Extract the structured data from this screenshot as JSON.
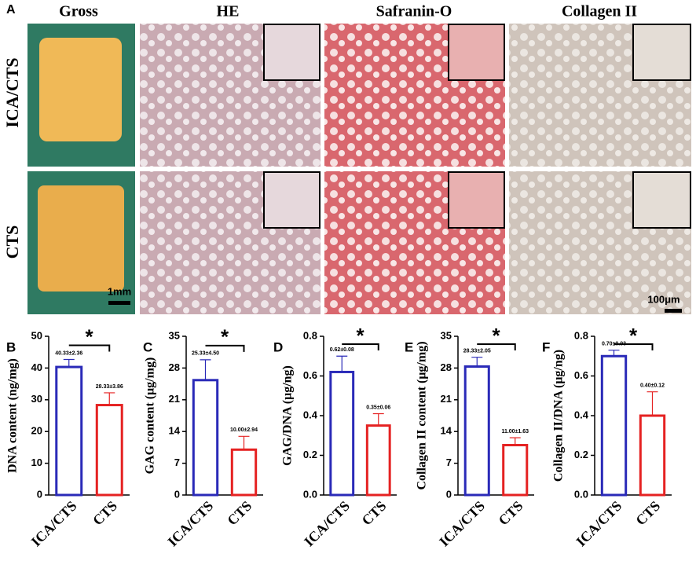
{
  "panel_a": {
    "label": "A",
    "columns": [
      "Gross",
      "HE",
      "Safranin-O",
      "Collagen II"
    ],
    "rows": [
      "ICA/CTS",
      "CTS"
    ],
    "scale_gross": "1mm",
    "scale_micro": "100μm"
  },
  "chart_data": [
    {
      "type": "bar",
      "label": "B",
      "ylabel": "DNA content (ng/mg)",
      "categories": [
        "ICA/CTS",
        "CTS"
      ],
      "values": [
        40.33,
        28.33
      ],
      "errors": [
        2.36,
        3.86
      ],
      "value_labels": [
        "40.33±2.36",
        "28.33±3.86"
      ],
      "colors": [
        "#2a2ab8",
        "#e52222"
      ],
      "ylim": [
        0,
        50
      ],
      "yticks": [
        0,
        10,
        20,
        30,
        40,
        50
      ],
      "significance": "*"
    },
    {
      "type": "bar",
      "label": "C",
      "ylabel": "GAG content (μg/mg)",
      "categories": [
        "ICA/CTS",
        "CTS"
      ],
      "values": [
        25.33,
        10.0
      ],
      "errors": [
        4.5,
        2.94
      ],
      "value_labels": [
        "25.33±4.50",
        "10.00±2.94"
      ],
      "colors": [
        "#2a2ab8",
        "#e52222"
      ],
      "ylim": [
        0,
        35
      ],
      "yticks": [
        0,
        7,
        14,
        21,
        28,
        35
      ],
      "significance": "*"
    },
    {
      "type": "bar",
      "label": "D",
      "ylabel": "GAG/DNA (μg/ng)",
      "categories": [
        "ICA/CTS",
        "CTS"
      ],
      "values": [
        0.62,
        0.35
      ],
      "errors": [
        0.08,
        0.06
      ],
      "value_labels": [
        "0.62±0.08",
        "0.35±0.06"
      ],
      "colors": [
        "#2a2ab8",
        "#e52222"
      ],
      "ylim": [
        0,
        0.8
      ],
      "yticks": [
        {
          "value": 0,
          "label": "0.0"
        },
        0.2,
        0.4,
        0.6,
        0.8
      ],
      "significance": "*"
    },
    {
      "type": "bar",
      "label": "E",
      "ylabel": "Collagen II content (μg/mg)",
      "categories": [
        "ICA/CTS",
        "CTS"
      ],
      "values": [
        28.33,
        11.0
      ],
      "errors": [
        2.05,
        1.63
      ],
      "value_labels": [
        "28.33±2.05",
        "11.00±1.63"
      ],
      "colors": [
        "#2a2ab8",
        "#e52222"
      ],
      "ylim": [
        0,
        35
      ],
      "yticks": [
        0,
        7,
        14,
        21,
        28,
        35
      ],
      "significance": "*"
    },
    {
      "type": "bar",
      "label": "F",
      "ylabel": "Collagen II/DNA (μg/ng)",
      "categories": [
        "ICA/CTS",
        "CTS"
      ],
      "values": [
        0.7,
        0.4
      ],
      "errors": [
        0.03,
        0.12
      ],
      "value_labels": [
        "0.70±0.03",
        "0.40±0.12"
      ],
      "colors": [
        "#2a2ab8",
        "#e52222"
      ],
      "ylim": [
        0,
        0.8
      ],
      "yticks": [
        {
          "value": 0,
          "label": "0.0"
        },
        0.2,
        0.4,
        0.6,
        0.8
      ],
      "significance": "*"
    }
  ]
}
